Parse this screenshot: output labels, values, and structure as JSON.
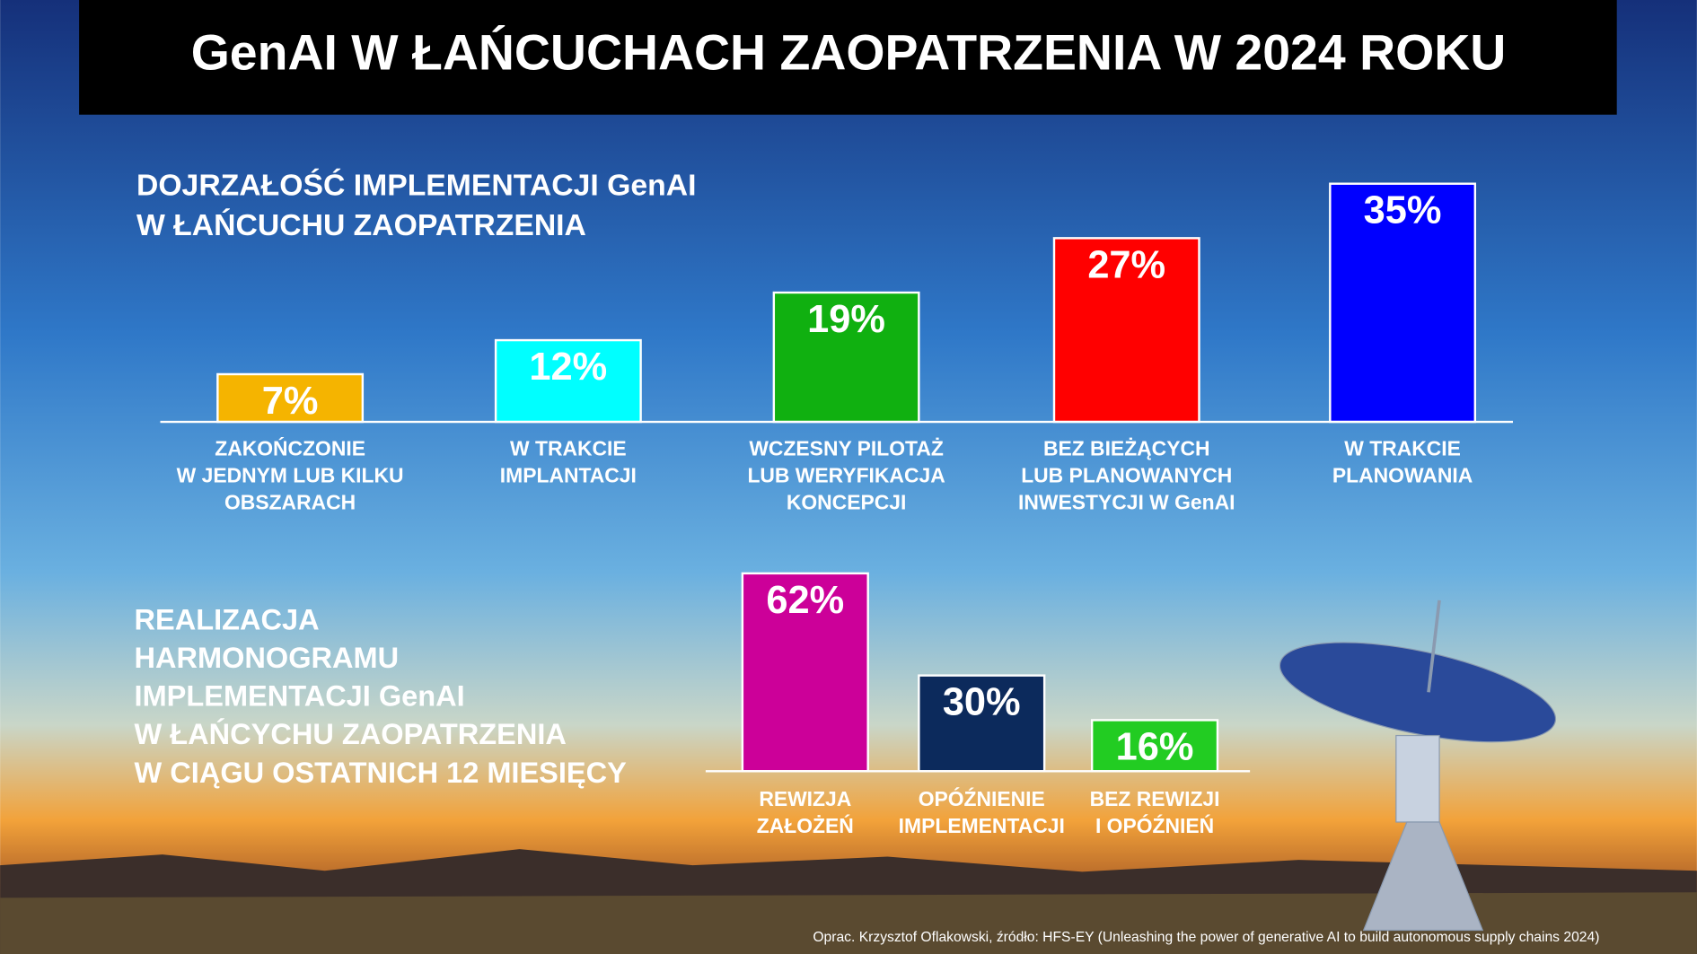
{
  "title": "GenAI W ŁAŃCUCHACH ZAOPATRZENIA W 2024 ROKU",
  "source": "Oprac. Krzysztof Oflakowski, źródło: HFS-EY (Unleashing the power of generative AI to build autonomous supply chains 2024)",
  "chart_data": [
    {
      "type": "bar",
      "title": [
        "DOJRZAŁOŚĆ  IMPLEMENTACJI GenAI",
        "W ŁAŃCUCHU ZAOPATRZENIA"
      ],
      "categories": [
        [
          "ZAKOŃCZONIE",
          "W JEDNYM LUB KILKU",
          "OBSZARACH"
        ],
        [
          "W TRAKCIE",
          "IMPLANTACJI"
        ],
        [
          "WCZESNY PILOTAŻ",
          "LUB WERYFIKACJA",
          "KONCEPCJI"
        ],
        [
          "BEZ BIEŻĄCYCH",
          "LUB PLANOWANYCH",
          "INWESTYCJI W GenAI"
        ],
        [
          "W TRAKCIE",
          "PLANOWANIA"
        ]
      ],
      "values": [
        7,
        12,
        19,
        27,
        35
      ],
      "value_labels": [
        "7%",
        "12%",
        "19%",
        "27%",
        "35%"
      ],
      "colors": [
        "#f5b400",
        "#00ffff",
        "#10b010",
        "#ff0000",
        "#0000ff"
      ]
    },
    {
      "type": "bar",
      "title": [
        "REALIZACJA",
        "HARMONOGRAMU",
        "IMPLEMENTACJI GenAI",
        "W ŁAŃCYCHU ZAOPATRZENIA",
        "W CIĄGU OSTATNICH 12 MIESIĘCY"
      ],
      "categories": [
        [
          "REWIZJA",
          "ZAŁOŻEŃ"
        ],
        [
          "OPÓŹNIENIE",
          "IMPLEMENTACJI"
        ],
        [
          "BEZ REWIZJI",
          "I OPÓŹNIEŃ"
        ]
      ],
      "values": [
        62,
        30,
        16
      ],
      "value_labels": [
        "62%",
        "30%",
        "16%"
      ],
      "colors": [
        "#cc0099",
        "#0c2a5c",
        "#22cc22"
      ]
    }
  ]
}
